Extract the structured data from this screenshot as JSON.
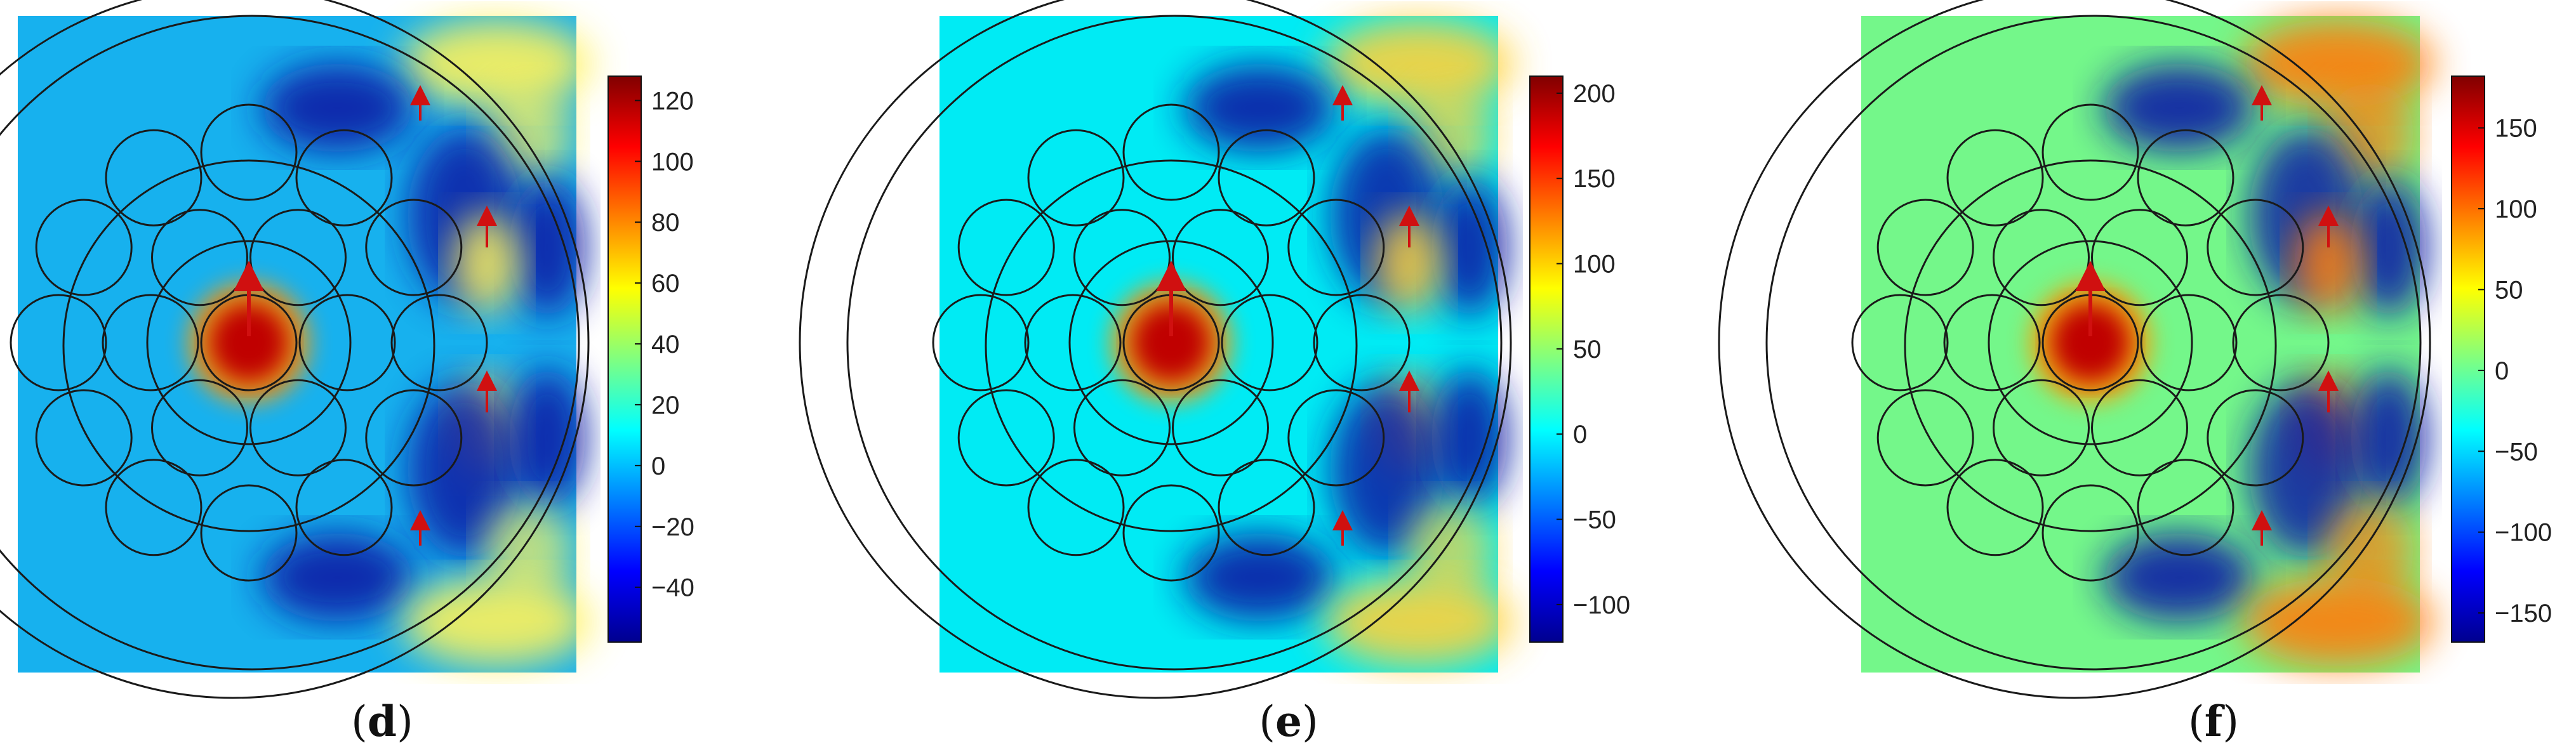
{
  "figure": {
    "panels": [
      {
        "caption_open": "(",
        "caption_letter": "d",
        "caption_close": ")",
        "colorbar": {
          "min": -58,
          "max": 128,
          "ticks": [
            120,
            100,
            80,
            60,
            40,
            20,
            0,
            -20,
            -40
          ],
          "tick_labels": [
            "120",
            "100",
            "80",
            "60",
            "40",
            "20",
            "0",
            "−20",
            "−40"
          ]
        },
        "background_color": "#17b1ee",
        "lobe_styles": {
          "pos": "#fff25a",
          "neg": "#0a1aa6",
          "core": "#c00000"
        }
      },
      {
        "caption_open": "(",
        "caption_letter": "e",
        "caption_close": ")",
        "colorbar": {
          "min": -122,
          "max": 210,
          "ticks": [
            200,
            150,
            100,
            50,
            0,
            -50,
            -100
          ],
          "tick_labels": [
            "200",
            "150",
            "100",
            "50",
            "0",
            "−50",
            "−100"
          ]
        },
        "background_color": "#00ebf4",
        "lobe_styles": {
          "pos": "#ffd23a",
          "neg": "#0a1aa6",
          "core": "#c00000"
        }
      },
      {
        "caption_open": "(",
        "caption_letter": "f",
        "caption_close": ")",
        "colorbar": {
          "min": -168,
          "max": 182,
          "ticks": [
            150,
            100,
            50,
            0,
            -50,
            -100,
            -150
          ],
          "tick_labels": [
            "150",
            "100",
            "50",
            "0",
            "−50",
            "−100",
            "−150"
          ]
        },
        "background_color": "#74f78a",
        "lobe_styles": {
          "pos": "#ff7e10",
          "neg": "#0a1aa6",
          "core": "#c00000"
        }
      }
    ],
    "colormap": [
      "#00008f",
      "#0000ff",
      "#0080ff",
      "#00ffff",
      "#80ff80",
      "#ffff00",
      "#ff8000",
      "#ff0000",
      "#800000"
    ],
    "outline_color": "#1a1a1a",
    "arrow_color": "#d01010"
  }
}
